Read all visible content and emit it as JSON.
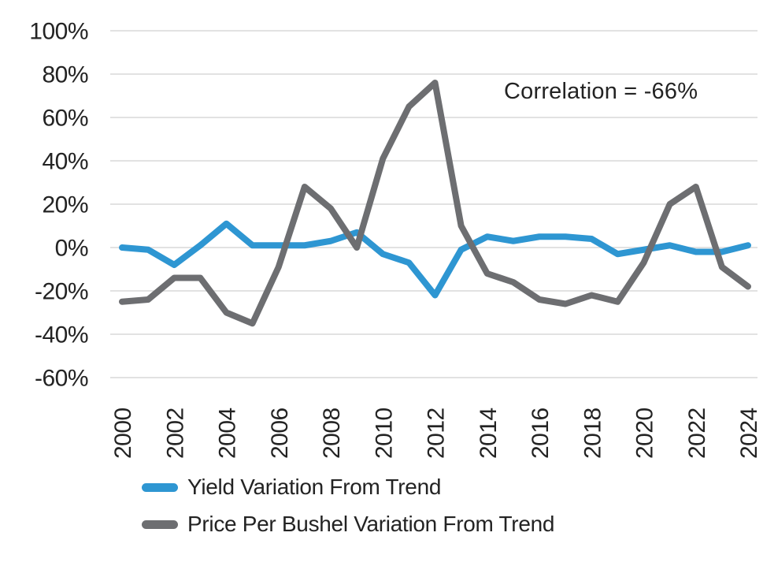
{
  "chart_data": {
    "type": "line",
    "title": "",
    "xlabel": "",
    "ylabel": "",
    "x": [
      2000,
      2001,
      2002,
      2003,
      2004,
      2005,
      2006,
      2007,
      2008,
      2009,
      2010,
      2011,
      2012,
      2013,
      2014,
      2015,
      2016,
      2017,
      2018,
      2019,
      2020,
      2021,
      2022,
      2023,
      2024
    ],
    "series": [
      {
        "name": "Yield Variation From Trend",
        "color": "#2E96D2",
        "values": [
          0,
          -1,
          -8,
          1,
          11,
          1,
          1,
          1,
          3,
          7,
          -3,
          -7,
          -22,
          -1,
          5,
          3,
          5,
          5,
          4,
          -3,
          -1,
          1,
          -2,
          -2,
          1
        ]
      },
      {
        "name": "Price Per Bushel Variation From Trend",
        "color": "#6D6E71",
        "values": [
          -25,
          -24,
          -14,
          -14,
          -30,
          -35,
          -9,
          28,
          18,
          0,
          41,
          65,
          76,
          10,
          -12,
          -16,
          -24,
          -26,
          -22,
          -25,
          -7,
          20,
          28,
          -9,
          -18
        ]
      }
    ],
    "annotation": "Correlation = -66%",
    "y_ticks": [
      "100%",
      "80%",
      "60%",
      "40%",
      "20%",
      "0%",
      "-20%",
      "-40%",
      "-60%"
    ],
    "y_tick_values": [
      100,
      80,
      60,
      40,
      20,
      0,
      -20,
      -40,
      -60
    ],
    "x_tick_years": [
      2000,
      2002,
      2004,
      2006,
      2008,
      2010,
      2012,
      2014,
      2016,
      2018,
      2020,
      2022,
      2024
    ],
    "ylim": [
      -60,
      100
    ],
    "grid": "horizontal",
    "gridline_color": "#D9D9D9",
    "legend_position": "bottom-left"
  }
}
